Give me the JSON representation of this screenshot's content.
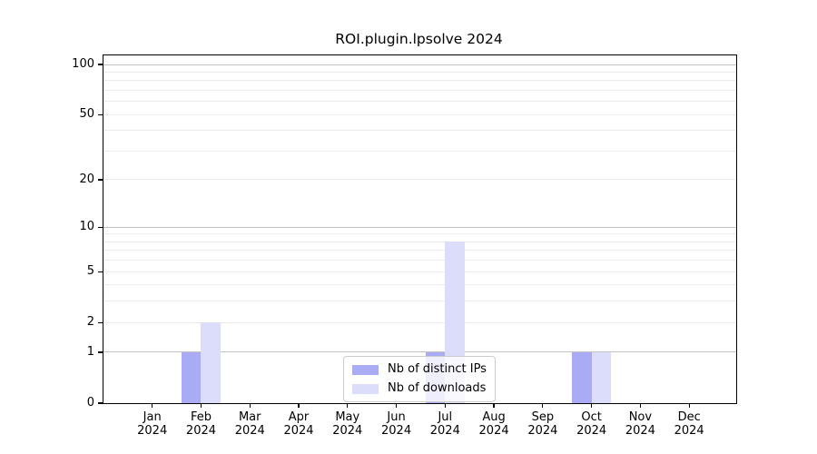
{
  "chart_data": {
    "type": "bar",
    "title": "ROI.plugin.lpsolve 2024",
    "categories": [
      "Jan",
      "Feb",
      "Mar",
      "Apr",
      "May",
      "Jun",
      "Jul",
      "Aug",
      "Sep",
      "Oct",
      "Nov",
      "Dec"
    ],
    "x_tick_second_line": "2024",
    "series": [
      {
        "name": "Nb of distinct IPs",
        "color": "#a9abf5",
        "values": [
          0,
          1,
          0,
          0,
          0,
          0,
          1,
          0,
          0,
          1,
          0,
          0
        ]
      },
      {
        "name": "Nb of downloads",
        "color": "#dbddfa",
        "values": [
          0,
          2,
          0,
          0,
          0,
          0,
          8,
          0,
          0,
          1,
          0,
          0
        ]
      }
    ],
    "yscale": "log1p",
    "ylim": [
      0,
      113
    ],
    "yticks": [
      0,
      1,
      2,
      5,
      10,
      20,
      50,
      100
    ],
    "major_gridline_values": [
      1,
      10,
      100
    ],
    "minor_gridline_values": [
      2,
      3,
      4,
      5,
      6,
      7,
      8,
      9,
      20,
      30,
      40,
      50,
      60,
      70,
      80,
      90
    ],
    "grid": true,
    "legend_position": "lower center"
  },
  "colors": {
    "axis": "#000000",
    "major_grid": "#c2c2c2",
    "minor_grid": "#ebebeb",
    "text": "#000000",
    "legend_border": "#cccccc"
  }
}
